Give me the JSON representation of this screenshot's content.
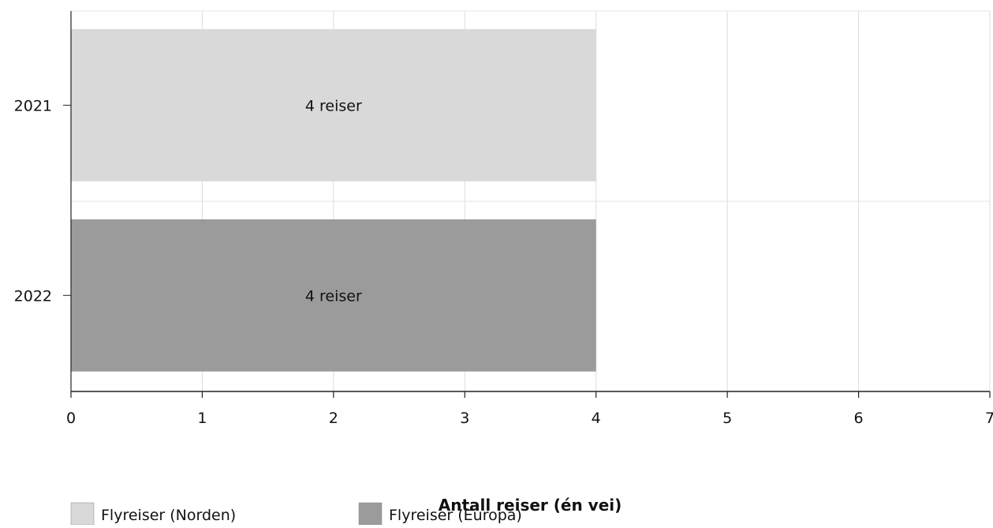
{
  "chart_data": {
    "type": "bar",
    "orientation": "horizontal",
    "categories": [
      "2021",
      "2022"
    ],
    "series": [
      {
        "name": "Flyreiser (Norden)",
        "color": "#d9d9d9",
        "values": [
          4,
          null
        ]
      },
      {
        "name": "Flyreiser (Europa)",
        "color": "#9b9b9b",
        "values": [
          null,
          4
        ]
      }
    ],
    "data_labels": [
      "4 reiser",
      "4 reiser"
    ],
    "xlabel": "Antall reiser (én vei)",
    "ylabel": "",
    "xlim": [
      0,
      7
    ],
    "x_ticks": [
      0,
      1,
      2,
      3,
      4,
      5,
      6,
      7
    ],
    "grid": true,
    "legend_position": "bottom-left"
  }
}
